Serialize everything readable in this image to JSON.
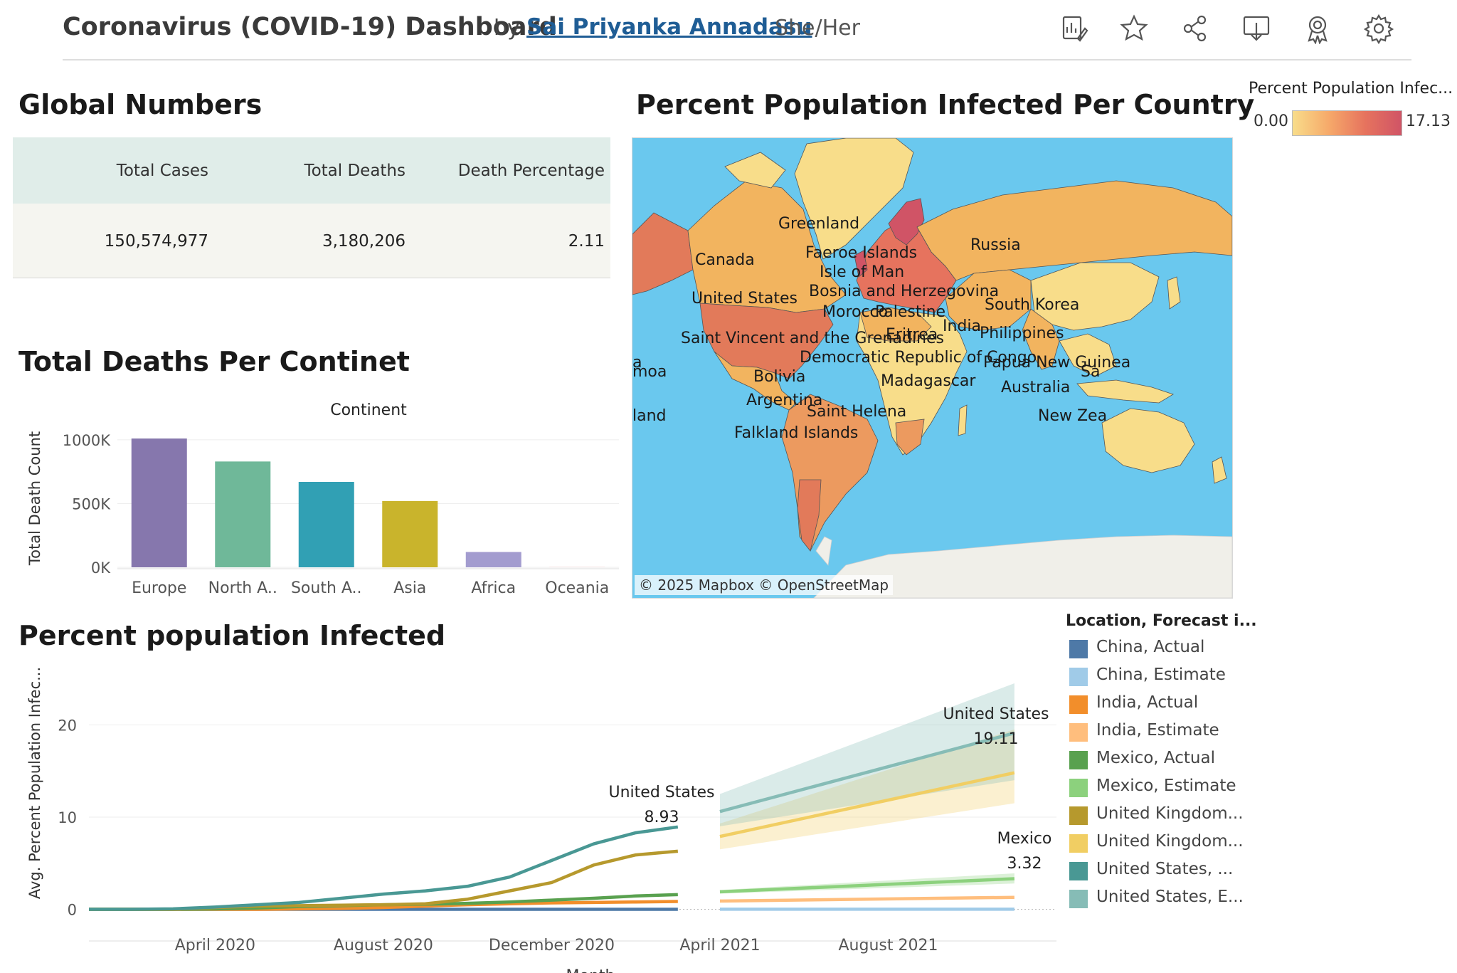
{
  "header": {
    "title": "Coronavirus (COVID-19) Dashboard",
    "by": "by",
    "author": "Sai Priyanka Annadasu",
    "pronoun": "She/Her",
    "toolbar": [
      {
        "name": "metrics-icon"
      },
      {
        "name": "star-icon"
      },
      {
        "name": "share-icon"
      },
      {
        "name": "download-icon"
      },
      {
        "name": "badge-icon"
      },
      {
        "name": "gear-icon"
      }
    ]
  },
  "global_numbers": {
    "title": "Global Numbers",
    "columns": [
      "Total Cases",
      "Total Deaths",
      "Death Percentage"
    ],
    "values": [
      "150,574,977",
      "3,180,206",
      "2.11"
    ]
  },
  "map": {
    "title": "Percent Population Infected Per Country",
    "attribution": "© 2025 Mapbox  © OpenStreetMap",
    "labels": [
      "Greenland",
      "Russia",
      "Canada",
      "Faeroe Islands",
      "Isle of Man",
      "Bosnia and Herzegovina",
      "United States",
      "Morocco",
      "Palestine",
      "South Korea",
      "India",
      "Saint Vincent and the Grenadines",
      "Eritrea",
      "Philippines",
      "Democratic Republic of Congo",
      "Papua New Guinea",
      "moa",
      "Sa",
      "Bolivia",
      "Madagascar",
      "Australia",
      "Argentina",
      "Saint Helena",
      "New Zea",
      "land",
      "Falkland Islands",
      "a"
    ],
    "legend": {
      "title": "Percent Population Infec...",
      "min": "0.00",
      "max": "17.13"
    },
    "colors": {
      "ocean": "#6ac8ee",
      "land_low": "#f8dd8a",
      "land_mid": "#f2b45f",
      "land_high": "#e27a5a",
      "land_max": "#d05466",
      "ice": "#f0efe9"
    }
  },
  "bar_chart": {
    "title": "Total Deaths Per Continet",
    "chart_data": {
      "type": "bar",
      "header": "Continent",
      "categories": [
        "Europe",
        "North A..",
        "South A..",
        "Asia",
        "Africa",
        "Oceania"
      ],
      "values": [
        1010000,
        830000,
        670000,
        520000,
        120000,
        1000
      ],
      "colors": [
        "#8677ad",
        "#6fb899",
        "#31a0b4",
        "#c9b42c",
        "#a39ccf",
        "#f08d93"
      ],
      "ylabel": "Total Death Count",
      "yticks": [
        0,
        500000,
        1000000
      ],
      "ytick_labels": [
        "0K",
        "500K",
        "1000K"
      ],
      "ylim": [
        0,
        1100000
      ]
    }
  },
  "line_chart": {
    "title": "Percent population Infected",
    "chart_data": {
      "type": "line",
      "ylabel": "Avg. Percent Population Infec...",
      "xlabel": "Month",
      "yticks": [
        0,
        10,
        20
      ],
      "ylim": [
        -1.5,
        24.5
      ],
      "xlim": [
        "2020-01",
        "2021-12"
      ],
      "xticks": [
        "2020-04",
        "2020-08",
        "2020-12",
        "2021-04",
        "2021-08"
      ],
      "xtick_labels": [
        "April 2020",
        "August 2020",
        "December 2020",
        "April 2021",
        "August 2021"
      ],
      "x_actual": [
        "2020-01",
        "2020-02",
        "2020-03",
        "2020-04",
        "2020-05",
        "2020-06",
        "2020-07",
        "2020-08",
        "2020-09",
        "2020-10",
        "2020-11",
        "2020-12",
        "2021-01",
        "2021-02",
        "2021-03"
      ],
      "x_estimate": [
        "2021-04",
        "2021-11"
      ],
      "series": [
        {
          "name": "China, Actual",
          "color": "#4e79a7",
          "values": [
            0,
            0,
            0,
            0,
            0,
            0,
            0,
            0,
            0,
            0,
            0,
            0,
            0,
            0,
            0
          ]
        },
        {
          "name": "China, Estimate",
          "color": "#a0cbe8",
          "values": [
            0.01,
            0.01
          ],
          "band": null
        },
        {
          "name": "India, Actual",
          "color": "#f28e2b",
          "values": [
            0,
            0,
            0,
            0,
            0,
            0.05,
            0.1,
            0.2,
            0.35,
            0.5,
            0.6,
            0.7,
            0.75,
            0.8,
            0.85
          ]
        },
        {
          "name": "India, Estimate",
          "color": "#ffbe7d",
          "values": [
            0.9,
            1.3
          ],
          "band": null
        },
        {
          "name": "Mexico, Actual",
          "color": "#59a14f",
          "values": [
            0,
            0,
            0,
            0.05,
            0.15,
            0.3,
            0.4,
            0.5,
            0.55,
            0.65,
            0.8,
            1.0,
            1.2,
            1.45,
            1.6
          ]
        },
        {
          "name": "Mexico, Estimate",
          "color": "#8cd17d",
          "values": [
            1.9,
            3.32
          ],
          "band": [
            [
              1.7,
              2.1
            ],
            [
              2.8,
              3.9
            ]
          ]
        },
        {
          "name": "United Kingdom, Actual",
          "color": "#b6992d",
          "values": [
            0,
            0,
            0,
            0.2,
            0.35,
            0.4,
            0.45,
            0.5,
            0.6,
            1.1,
            2.0,
            2.9,
            4.8,
            5.9,
            6.3
          ]
        },
        {
          "name": "United Kingdom, Estimate",
          "color": "#f1ce63",
          "values": [
            7.9,
            14.8
          ],
          "band": [
            [
              6.5,
              9.3
            ],
            [
              11.5,
              19.5
            ]
          ]
        },
        {
          "name": "United States, Actual",
          "color": "#499894",
          "values": [
            0,
            0,
            0.05,
            0.25,
            0.5,
            0.75,
            1.2,
            1.65,
            2.0,
            2.5,
            3.5,
            5.3,
            7.1,
            8.3,
            8.93
          ]
        },
        {
          "name": "United States, Estimate",
          "color": "#86bcb6",
          "values": [
            10.6,
            19.11
          ],
          "band": [
            [
              9.0,
              12.5
            ],
            [
              14.0,
              24.5
            ]
          ]
        }
      ],
      "annotations": [
        {
          "name": "United States",
          "value": "8.93"
        },
        {
          "name": "United States",
          "value": "19.11"
        },
        {
          "name": "Mexico",
          "value": "3.32"
        }
      ]
    },
    "legend": {
      "title": "Location, Forecast i...",
      "items": [
        "China, Actual",
        "China, Estimate",
        "India, Actual",
        "India, Estimate",
        "Mexico, Actual",
        "Mexico, Estimate",
        "United Kingdom...",
        "United Kingdom...",
        "United States, ...",
        "United States, E..."
      ],
      "colors": [
        "#4e79a7",
        "#a0cbe8",
        "#f28e2b",
        "#ffbe7d",
        "#59a14f",
        "#8cd17d",
        "#b6992d",
        "#f1ce63",
        "#499894",
        "#86bcb6"
      ]
    }
  }
}
